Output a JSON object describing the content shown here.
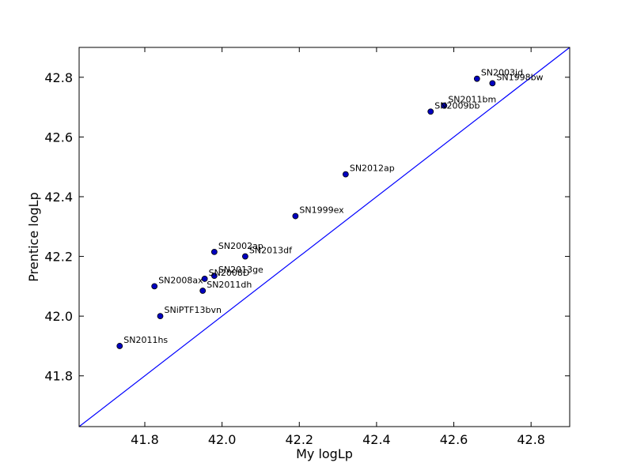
{
  "chart_data": {
    "type": "scatter",
    "title": "",
    "xlabel": "My logLp",
    "ylabel": "Prentice logLp",
    "xlim": [
      41.63,
      42.9
    ],
    "ylim": [
      41.63,
      42.9
    ],
    "x_ticks": [
      "41.8",
      "42.0",
      "42.2",
      "42.4",
      "42.6",
      "42.8"
    ],
    "y_ticks": [
      "41.8",
      "42.0",
      "42.2",
      "42.4",
      "42.6",
      "42.8"
    ],
    "grid": false,
    "marker_color": "#0000bf",
    "line_color": "#0000ff",
    "reference_line": {
      "x": [
        41.63,
        42.9
      ],
      "y": [
        41.63,
        42.9
      ]
    },
    "points": [
      {
        "label": "SN2003jd",
        "x": 42.66,
        "y": 42.795
      },
      {
        "label": "SN1998bw",
        "x": 42.7,
        "y": 42.78
      },
      {
        "label": "SN2011bm",
        "x": 42.575,
        "y": 42.705
      },
      {
        "label": "SN2009bb",
        "x": 42.54,
        "y": 42.685
      },
      {
        "label": "SN2012ap",
        "x": 42.32,
        "y": 42.475
      },
      {
        "label": "SN1999ex",
        "x": 42.19,
        "y": 42.335
      },
      {
        "label": "SN2002ap",
        "x": 41.98,
        "y": 42.215
      },
      {
        "label": "SN2013df",
        "x": 42.06,
        "y": 42.2
      },
      {
        "label": "SN2008D",
        "x": 41.955,
        "y": 42.125
      },
      {
        "label": "SN2013ge",
        "x": 41.98,
        "y": 42.135
      },
      {
        "label": "SN2008ax",
        "x": 41.825,
        "y": 42.1
      },
      {
        "label": "SN2011dh",
        "x": 41.95,
        "y": 42.085
      },
      {
        "label": "SNiPTF13bvn",
        "x": 41.84,
        "y": 42.0
      },
      {
        "label": "SN2011hs",
        "x": 41.735,
        "y": 41.9
      }
    ]
  }
}
